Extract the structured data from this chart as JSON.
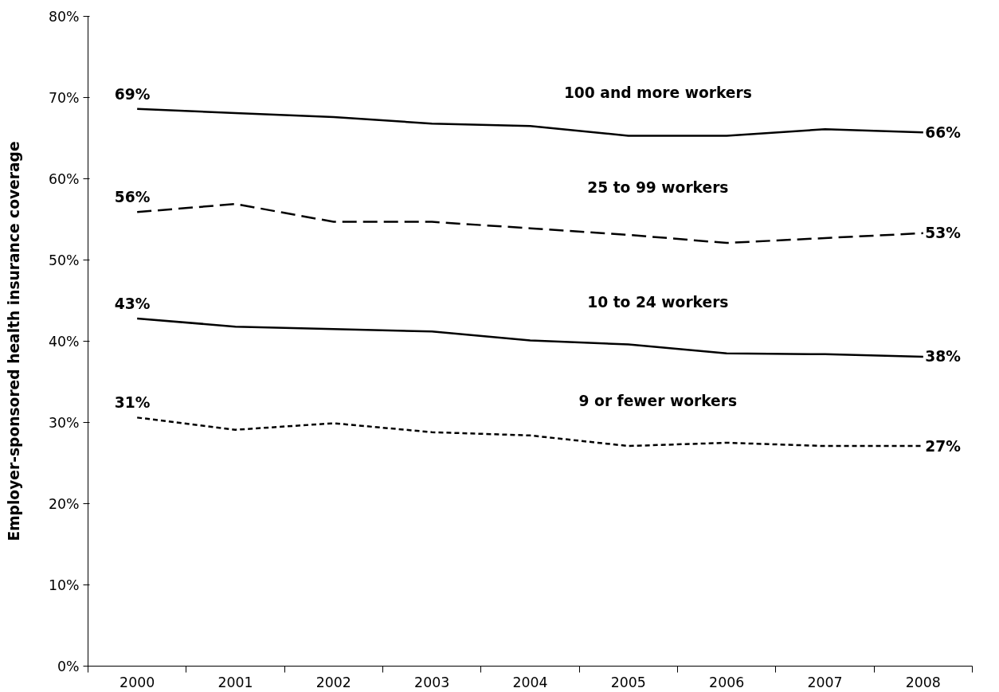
{
  "chart_data": {
    "type": "line",
    "ylabel": "Employer-sponsored health insurance coverage",
    "categories": [
      "2000",
      "2001",
      "2002",
      "2003",
      "2004",
      "2005",
      "2006",
      "2007",
      "2008"
    ],
    "ylim": [
      0,
      80
    ],
    "yticks": [
      {
        "value": 0,
        "label": "0%"
      },
      {
        "value": 10,
        "label": "10%"
      },
      {
        "value": 20,
        "label": "20%"
      },
      {
        "value": 30,
        "label": "30%"
      },
      {
        "value": 40,
        "label": "40%"
      },
      {
        "value": 50,
        "label": "50%"
      },
      {
        "value": 60,
        "label": "60%"
      },
      {
        "value": 70,
        "label": "70%"
      },
      {
        "value": 80,
        "label": "80%"
      }
    ],
    "grid": false,
    "marker": "none",
    "series": [
      {
        "name": "100 and more workers",
        "color": "#000000",
        "line_style": "solid",
        "values": [
          68.6,
          68.1,
          67.6,
          66.8,
          66.5,
          65.3,
          65.3,
          66.1,
          65.7
        ],
        "value_labels": [
          "69%",
          null,
          null,
          null,
          null,
          null,
          null,
          null,
          "66%"
        ]
      },
      {
        "name": "25 to 99 workers",
        "color": "#000000",
        "line_style": "dashed",
        "values": [
          55.9,
          56.9,
          54.7,
          54.7,
          53.9,
          53.1,
          52.1,
          52.7,
          53.3
        ],
        "value_labels": [
          "56%",
          null,
          null,
          null,
          null,
          null,
          null,
          null,
          "53%"
        ]
      },
      {
        "name": "10 to 24 workers",
        "color": "#000000",
        "line_style": "solid",
        "values": [
          42.8,
          41.8,
          41.5,
          41.2,
          40.1,
          39.6,
          38.5,
          38.4,
          38.1
        ],
        "value_labels": [
          "43%",
          null,
          null,
          null,
          null,
          null,
          null,
          null,
          "38%"
        ]
      },
      {
        "name": "9 or fewer workers",
        "color": "#000000",
        "line_style": "dotted",
        "values": [
          30.6,
          29.1,
          29.9,
          28.8,
          28.4,
          27.1,
          27.5,
          27.1,
          27.1
        ],
        "value_labels": [
          "31%",
          null,
          null,
          null,
          null,
          null,
          null,
          null,
          "27%"
        ]
      }
    ]
  }
}
